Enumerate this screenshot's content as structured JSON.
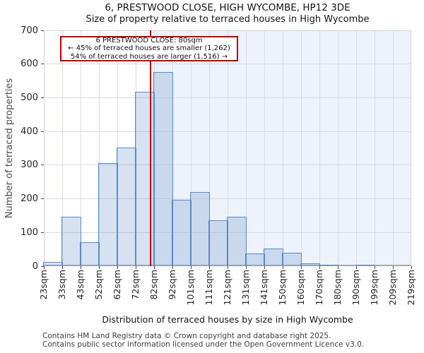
{
  "chart_data": {
    "type": "bar",
    "title": "6, PRESTWOOD CLOSE, HIGH WYCOMBE, HP12 3DE",
    "subtitle": "Size of property relative to terraced houses in High Wycombe",
    "xlabel": "Distribution of terraced houses by size in High Wycombe",
    "ylabel": "Number of terraced properties",
    "categories": [
      "23sqm",
      "33sqm",
      "43sqm",
      "52sqm",
      "62sqm",
      "72sqm",
      "82sqm",
      "92sqm",
      "101sqm",
      "111sqm",
      "121sqm",
      "131sqm",
      "141sqm",
      "150sqm",
      "160sqm",
      "170sqm",
      "180sqm",
      "190sqm",
      "199sqm",
      "209sqm",
      "219sqm"
    ],
    "values": [
      12,
      147,
      71,
      305,
      353,
      518,
      577,
      197,
      220,
      137,
      147,
      38,
      53,
      40,
      8,
      5,
      0,
      5,
      0,
      0
    ],
    "ylim": [
      0,
      700
    ],
    "yticks": [
      0,
      100,
      200,
      300,
      400,
      500,
      600,
      700
    ],
    "grid": true,
    "legend": null,
    "marker": {
      "value_sqm": 80
    },
    "annotation_lines": [
      "6 PRESTWOOD CLOSE: 80sqm",
      "← 45% of terraced houses are smaller (1,262)",
      "54% of terraced houses are larger (1,516) →"
    ],
    "footer_lines": [
      "Contains HM Land Registry data © Crown copyright and database right 2025.",
      "Contains public sector information licensed under the Open Government Licence v3.0."
    ],
    "colors": {
      "bar_fill": "rgba(93,139,199,0.25)",
      "bar_edge": "#5b8ac6",
      "marker_line": "#c00000",
      "annotation_border": "#c00000",
      "shade_right_of_marker": "#eef2fa",
      "gridline": "#dadce2"
    }
  }
}
